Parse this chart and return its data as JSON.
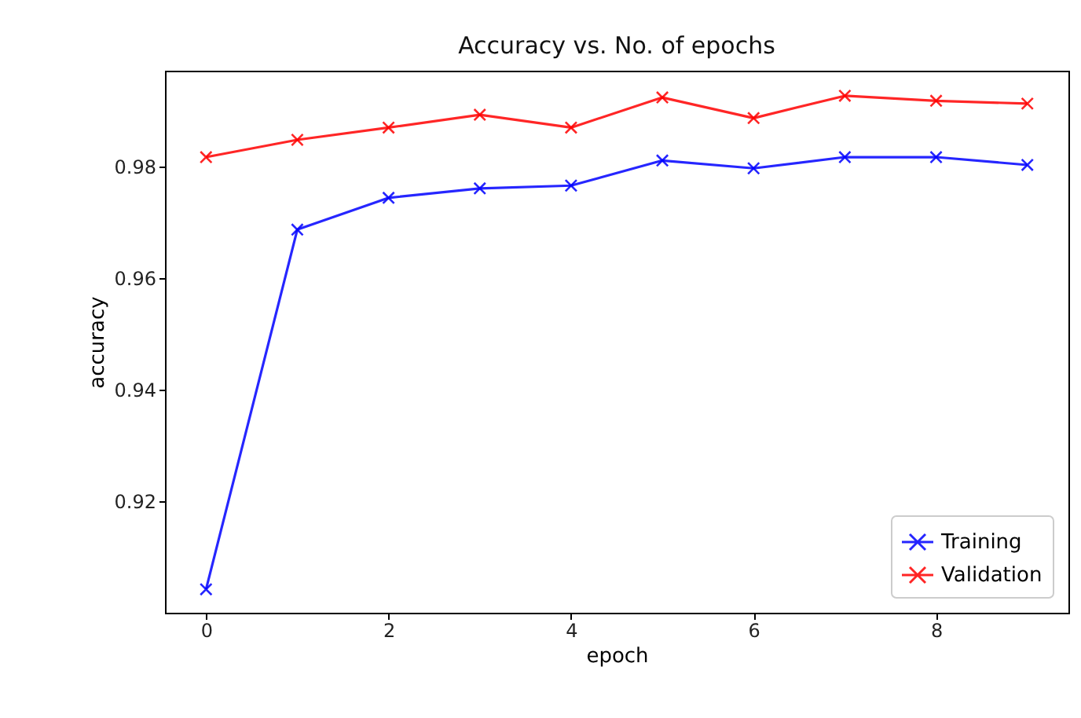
{
  "chart_data": {
    "type": "line",
    "title": "Accuracy vs. No. of epochs",
    "xlabel": "epoch",
    "ylabel": "accuracy",
    "x": [
      0,
      1,
      2,
      3,
      4,
      5,
      6,
      7,
      8,
      9
    ],
    "series": [
      {
        "name": "Training",
        "color": "#0000ff",
        "values": [
          0.9042,
          0.9687,
          0.9744,
          0.9761,
          0.9766,
          0.9811,
          0.9797,
          0.9817,
          0.9817,
          0.9803
        ]
      },
      {
        "name": "Validation",
        "color": "#ff0000",
        "values": [
          0.9817,
          0.9848,
          0.987,
          0.9893,
          0.987,
          0.9924,
          0.9887,
          0.9927,
          0.9918,
          0.9913
        ]
      }
    ],
    "xlim": [
      -0.45,
      9.45
    ],
    "xticks": [
      0,
      2,
      4,
      6,
      8
    ],
    "ylim": [
      0.9,
      0.9972
    ],
    "yticks": [
      0.92,
      0.94,
      0.96,
      0.98
    ],
    "grid": false,
    "legend": "bottom right",
    "marker": "cross",
    "line_style": "solid"
  }
}
